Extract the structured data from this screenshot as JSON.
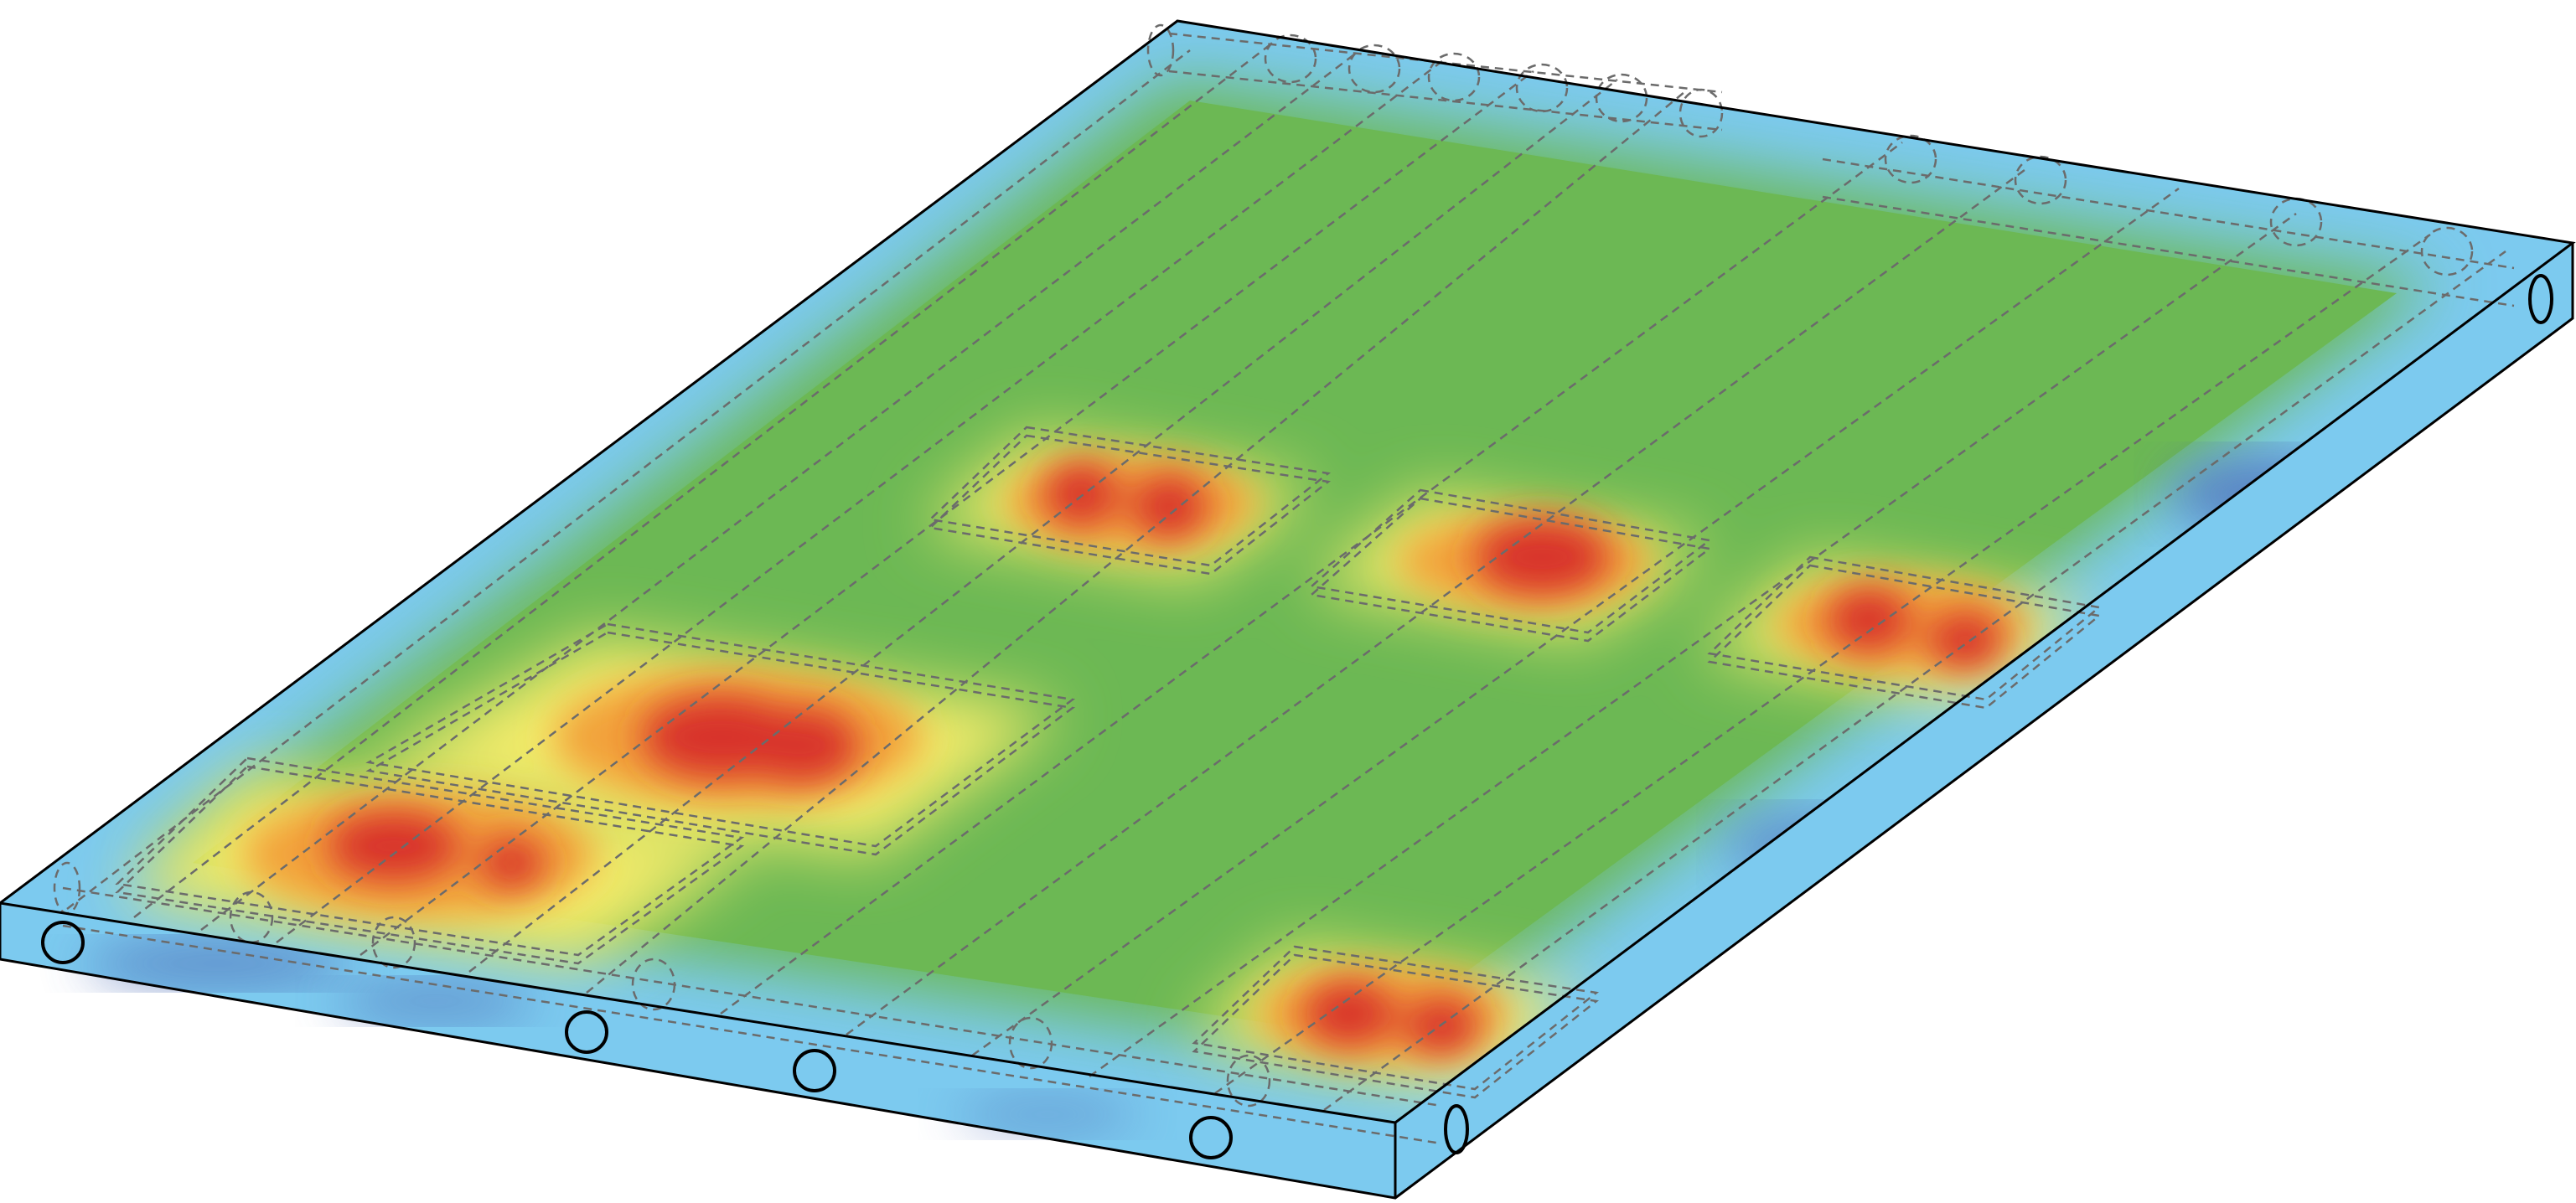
{
  "figure": {
    "description_visible_text": "",
    "colormap": {
      "cold_dark": "#4f6fb8",
      "cold": "#7ccaef",
      "ambient": "#6cb854",
      "warm": "#f5ec6b",
      "hot": "#f2a23a",
      "peak": "#d8312a"
    },
    "outline_color": "#000000",
    "hidden_line_color": "#6b6b6b",
    "pipe_count_visible_front": 6,
    "hotspot_count": 6
  }
}
